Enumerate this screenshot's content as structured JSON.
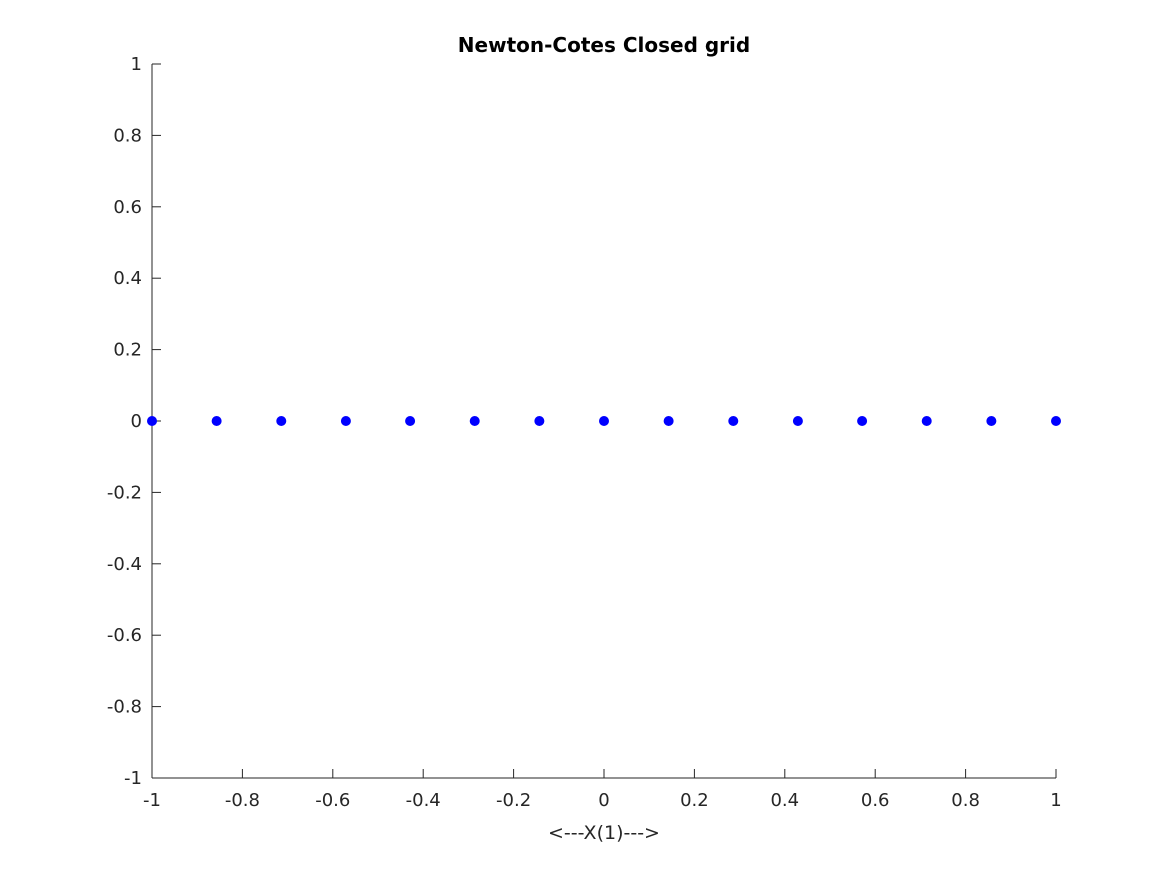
{
  "chart_data": {
    "type": "scatter",
    "title": "Newton-Cotes Closed grid",
    "xlabel": "<---X(1)--->",
    "ylabel": "",
    "xlim": [
      -1,
      1
    ],
    "ylim": [
      -1,
      1
    ],
    "xticks": [
      -1,
      -0.8,
      -0.6,
      -0.4,
      -0.2,
      0,
      0.2,
      0.4,
      0.6,
      0.8,
      1
    ],
    "xtick_labels": [
      "-1",
      "-0.8",
      "-0.6",
      "-0.4",
      "-0.2",
      "0",
      "0.2",
      "0.4",
      "0.6",
      "0.8",
      "1"
    ],
    "yticks": [
      -1,
      -0.8,
      -0.6,
      -0.4,
      -0.2,
      0,
      0.2,
      0.4,
      0.6,
      0.8,
      1
    ],
    "ytick_labels": [
      "-1",
      "-0.8",
      "-0.6",
      "-0.4",
      "-0.2",
      "0",
      "0.2",
      "0.4",
      "0.6",
      "0.8",
      "1"
    ],
    "grid": false,
    "marker_color": "#0000ff",
    "axis_color": "#262626",
    "series": [
      {
        "x": [
          -1,
          -0.857,
          -0.714,
          -0.571,
          -0.429,
          -0.286,
          -0.143,
          0,
          0.143,
          0.286,
          0.429,
          0.571,
          0.714,
          0.857,
          1
        ],
        "y": [
          0,
          0,
          0,
          0,
          0,
          0,
          0,
          0,
          0,
          0,
          0,
          0,
          0,
          0,
          0
        ]
      }
    ]
  }
}
